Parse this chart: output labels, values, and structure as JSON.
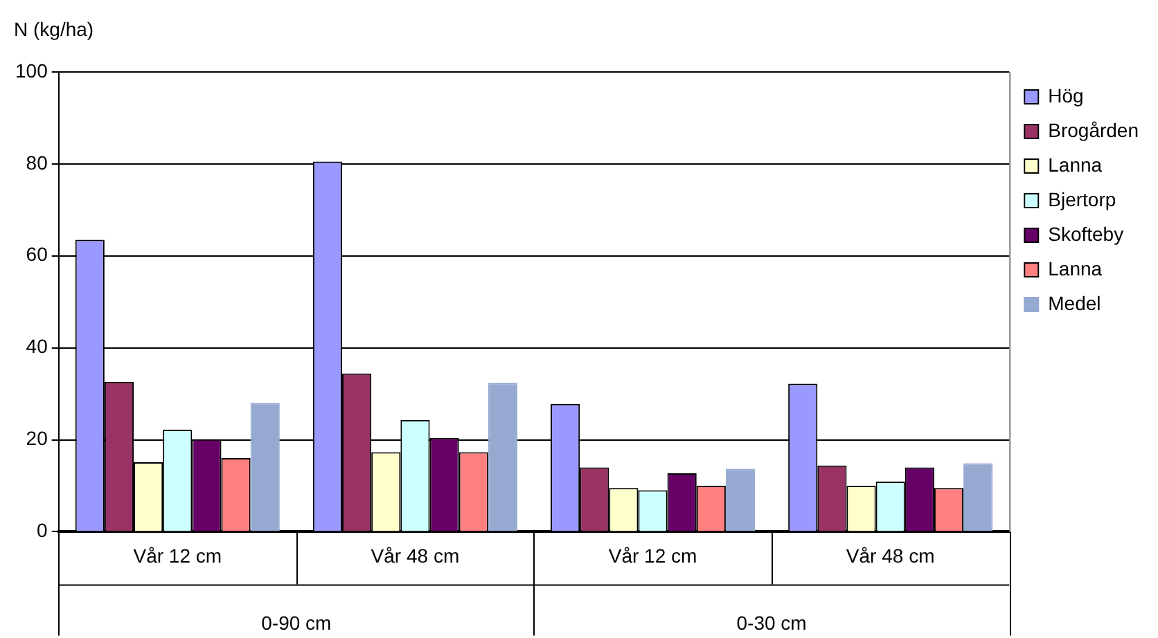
{
  "chart_data": {
    "type": "bar",
    "ylabel": "N (kg/ha)",
    "categories": [
      "Vår 12 cm",
      "Vår 48 cm",
      "Vår 12 cm",
      "Vår 48 cm"
    ],
    "annotations": [
      "0-90 cm",
      "0-30 cm"
    ],
    "series": [
      {
        "name": "Hög",
        "color": "#9999ff",
        "values": [
          63.5,
          80.5,
          27.8,
          32.2
        ]
      },
      {
        "name": "Brogården",
        "color": "#993366",
        "values": [
          32.6,
          34.4,
          14.0,
          14.4
        ]
      },
      {
        "name": "Lanna",
        "color": "#ffffcc",
        "values": [
          15.1,
          17.3,
          9.5,
          10.0
        ]
      },
      {
        "name": "Bjertorp",
        "color": "#ccffff",
        "values": [
          22.2,
          24.3,
          9.0,
          10.9
        ]
      },
      {
        "name": "Skofteby",
        "color": "#660066",
        "values": [
          20.1,
          20.4,
          12.7,
          14.0
        ]
      },
      {
        "name": "Lanna",
        "color": "#ff8080",
        "values": [
          16.0,
          17.3,
          10.0,
          9.5
        ]
      },
      {
        "name": "Medel",
        "color": "#96a9d1",
        "values": [
          28.0,
          32.4,
          13.7,
          14.9
        ]
      }
    ],
    "ylim": [
      0,
      100
    ],
    "yticks": [
      0,
      20,
      40,
      60,
      80,
      100
    ],
    "grid": "y",
    "legend": "top right"
  }
}
